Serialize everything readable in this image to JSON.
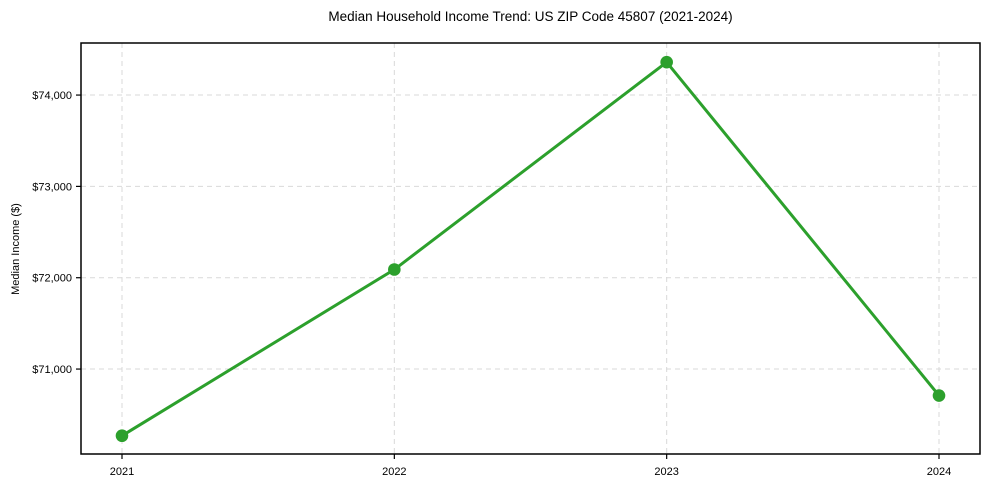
{
  "chart_data": {
    "type": "line",
    "title": "Median Household Income Trend: US ZIP Code 45807 (2021-2024)",
    "xlabel": "",
    "ylabel": "Median Income ($)",
    "categories": [
      "2021",
      "2022",
      "2023",
      "2024"
    ],
    "series": [
      {
        "name": "Median Household Income",
        "values": [
          70270,
          72090,
          74360,
          70710
        ]
      }
    ],
    "ylim": [
      70070,
      74570
    ],
    "yticks": [
      71000,
      72000,
      73000,
      74000
    ],
    "ytick_prefix": "$",
    "grid": true,
    "grid_style": "dashed",
    "legend_position": "none",
    "colors": {
      "line": "#2ca02c",
      "marker": "#2ca02c",
      "grid": "#d9d9d9",
      "axis": "#000000",
      "text": "#000000",
      "background": "#ffffff"
    }
  }
}
